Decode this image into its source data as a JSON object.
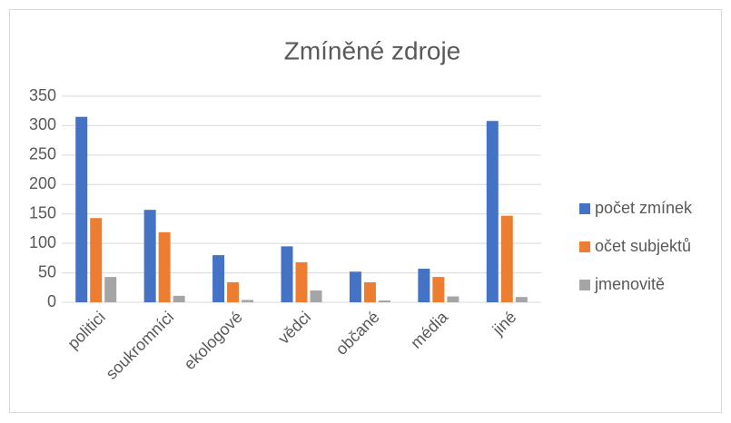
{
  "chart_data": {
    "type": "bar",
    "title": "Zmíněné zdroje",
    "categories": [
      "politici",
      "soukromníci",
      "ekologové",
      "vědci",
      "občané",
      "média",
      "jiné"
    ],
    "series": [
      {
        "name": "počet zmínek",
        "color": "#4472c4",
        "values": [
          315,
          157,
          80,
          95,
          52,
          57,
          308
        ]
      },
      {
        "name": "očet subjektů",
        "color": "#ed7d31",
        "values": [
          143,
          119,
          34,
          68,
          34,
          43,
          147
        ]
      },
      {
        "name": "jmenovitě",
        "color": "#a5a5a5",
        "values": [
          43,
          11,
          4,
          20,
          3,
          10,
          9
        ]
      }
    ],
    "ylim": [
      0,
      350
    ],
    "yticks": [
      0,
      50,
      100,
      150,
      200,
      250,
      300,
      350
    ],
    "grid": true,
    "legend": "right"
  }
}
